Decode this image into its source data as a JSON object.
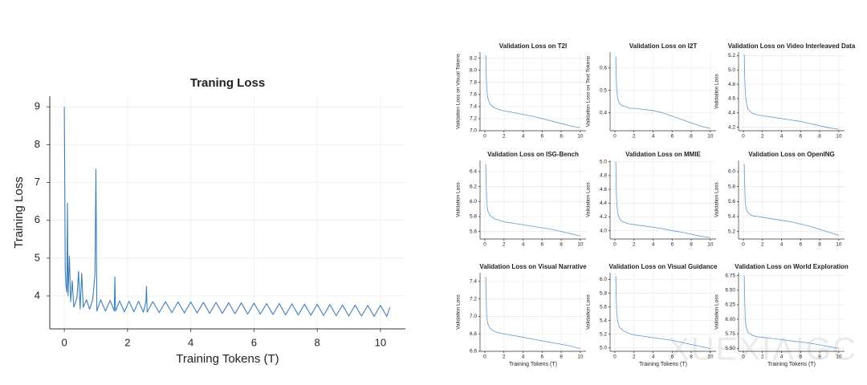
{
  "watermark": "XUEXIAIGC",
  "chart_data": [
    {
      "type": "line",
      "title": "Traning Loss",
      "x_label": "Training Tokens (T)",
      "y_label": "Training Loss",
      "color": "#3b7fc0",
      "grid": true,
      "xlim": [
        -0.46,
        10.79
      ],
      "ylim": [
        3.13,
        9.28
      ],
      "xticks": [
        0,
        2,
        4,
        6,
        8,
        10
      ],
      "yticks": [
        4,
        5,
        6,
        7,
        8,
        9
      ],
      "x": [
        0,
        0.03,
        0.05,
        0.08,
        0.1,
        0.12,
        0.16,
        0.2,
        0.25,
        0.3,
        0.4,
        0.45,
        0.5,
        0.55,
        0.6,
        0.7,
        0.8,
        0.9,
        0.97,
        1.0,
        1.03,
        1.15,
        1.3,
        1.45,
        1.58,
        1.6,
        1.62,
        1.75,
        1.9,
        2.05,
        2.2,
        2.35,
        2.5,
        2.58,
        2.6,
        2.62,
        2.8,
        3.0,
        3.2,
        3.4,
        3.6,
        3.8,
        4.0,
        4.2,
        4.4,
        4.6,
        4.8,
        5.0,
        5.2,
        5.4,
        5.6,
        5.8,
        6.0,
        6.2,
        6.4,
        6.6,
        6.8,
        7.0,
        7.2,
        7.4,
        7.6,
        7.8,
        8.0,
        8.2,
        8.4,
        8.6,
        8.8,
        9.0,
        9.2,
        9.4,
        9.6,
        9.8,
        10.0,
        10.2,
        10.3
      ],
      "values": [
        9.0,
        4.7,
        4.3,
        4.1,
        6.45,
        4.0,
        5.05,
        3.85,
        4.4,
        3.7,
        3.95,
        4.65,
        3.65,
        4.6,
        3.7,
        3.9,
        3.65,
        3.9,
        4.6,
        7.35,
        3.6,
        3.9,
        3.6,
        3.88,
        3.6,
        4.5,
        3.6,
        3.87,
        3.58,
        3.86,
        3.58,
        3.86,
        3.57,
        3.85,
        4.25,
        3.57,
        3.85,
        3.56,
        3.85,
        3.56,
        3.84,
        3.55,
        3.84,
        3.55,
        3.83,
        3.54,
        3.83,
        3.54,
        3.82,
        3.53,
        3.82,
        3.52,
        3.81,
        3.52,
        3.8,
        3.51,
        3.8,
        3.5,
        3.79,
        3.5,
        3.78,
        3.49,
        3.78,
        3.48,
        3.77,
        3.48,
        3.76,
        3.47,
        3.76,
        3.47,
        3.75,
        3.46,
        3.75,
        3.46,
        3.7
      ]
    },
    {
      "type": "line",
      "title": "Validation Loss on T2I",
      "y_label": "Validation Loss on Visual Tokens",
      "color": "#5b9bd5",
      "grid": true,
      "xlim": [
        -0.5,
        10.6
      ],
      "ylim": [
        7.0,
        8.3
      ],
      "xticks": [
        0,
        2,
        4,
        6,
        8,
        10
      ],
      "yticks": [
        {
          "value": 7,
          "label": "7.0"
        },
        7.2,
        7.4,
        7.6,
        7.8,
        {
          "value": 8,
          "label": "8.0"
        },
        8.2
      ],
      "x": [
        0.1,
        0.15,
        0.2,
        0.3,
        0.5,
        0.8,
        1,
        1.5,
        2,
        3,
        4,
        5,
        6,
        7,
        8,
        9,
        10
      ],
      "values": [
        8.25,
        7.9,
        7.7,
        7.55,
        7.45,
        7.4,
        7.38,
        7.35,
        7.33,
        7.3,
        7.27,
        7.24,
        7.2,
        7.16,
        7.12,
        7.08,
        7.05
      ]
    },
    {
      "type": "line",
      "title": "Validation Loss on I2T",
      "y_label": "Validation Loss on Text Tokens",
      "color": "#5b9bd5",
      "grid": true,
      "xlim": [
        -0.5,
        10.6
      ],
      "ylim": [
        0.32,
        0.67
      ],
      "xticks": [
        0,
        2,
        4,
        6,
        8,
        10
      ],
      "yticks": [
        0.4,
        0.5,
        0.6
      ],
      "x": [
        0.1,
        0.15,
        0.2,
        0.3,
        0.5,
        0.8,
        1,
        1.5,
        2,
        3,
        4,
        5,
        6,
        7,
        8,
        9,
        10
      ],
      "values": [
        0.65,
        0.55,
        0.5,
        0.46,
        0.44,
        0.43,
        0.43,
        0.42,
        0.42,
        0.415,
        0.41,
        0.4,
        0.385,
        0.37,
        0.355,
        0.34,
        0.33
      ]
    },
    {
      "type": "line",
      "title": "Validation Loss on Video Interleaved Data",
      "y_label": "Validation Loss",
      "color": "#5b9bd5",
      "grid": true,
      "xlim": [
        -0.5,
        10.6
      ],
      "ylim": [
        4.15,
        5.25
      ],
      "xticks": [
        0,
        2,
        4,
        6,
        8,
        10
      ],
      "yticks": [
        4.2,
        4.4,
        4.6,
        4.8,
        {
          "value": 5,
          "label": "5.0"
        },
        5.2
      ],
      "x": [
        0.1,
        0.15,
        0.2,
        0.3,
        0.5,
        0.8,
        1,
        1.5,
        2,
        3,
        4,
        5,
        6,
        7,
        8,
        9,
        10
      ],
      "values": [
        5.22,
        4.9,
        4.7,
        4.55,
        4.45,
        4.41,
        4.39,
        4.37,
        4.36,
        4.34,
        4.32,
        4.3,
        4.28,
        4.25,
        4.22,
        4.19,
        4.17
      ]
    },
    {
      "type": "line",
      "title": "Validation Loss on ISG-Bench",
      "y_label": "Validation Loss",
      "color": "#5b9bd5",
      "grid": true,
      "xlim": [
        -0.5,
        10.6
      ],
      "ylim": [
        5.5,
        6.55
      ],
      "xticks": [
        0,
        2,
        4,
        6,
        8,
        10
      ],
      "yticks": [
        5.6,
        5.8,
        {
          "value": 6,
          "label": "6.0"
        },
        6.2,
        6.4
      ],
      "x": [
        0.1,
        0.15,
        0.2,
        0.3,
        0.5,
        0.8,
        1,
        1.5,
        2,
        3,
        4,
        5,
        6,
        7,
        8,
        9,
        10
      ],
      "values": [
        6.5,
        6.2,
        6.0,
        5.88,
        5.82,
        5.79,
        5.77,
        5.75,
        5.73,
        5.71,
        5.69,
        5.67,
        5.65,
        5.63,
        5.6,
        5.57,
        5.54
      ]
    },
    {
      "type": "line",
      "title": "Validation Loss on MMIE",
      "y_label": "Validation Loss",
      "color": "#5b9bd5",
      "grid": true,
      "xlim": [
        -0.5,
        10.6
      ],
      "ylim": [
        3.88,
        5.02
      ],
      "xticks": [
        0,
        2,
        4,
        6,
        8,
        10
      ],
      "yticks": [
        {
          "value": 4,
          "label": "4.0"
        },
        4.2,
        4.4,
        4.6,
        4.8,
        {
          "value": 5,
          "label": "5.0"
        }
      ],
      "x": [
        0.1,
        0.15,
        0.2,
        0.3,
        0.5,
        0.8,
        1,
        1.5,
        2,
        3,
        4,
        5,
        6,
        7,
        8,
        9,
        10
      ],
      "values": [
        5.0,
        4.6,
        4.4,
        4.25,
        4.17,
        4.13,
        4.12,
        4.1,
        4.09,
        4.07,
        4.05,
        4.03,
        4.0,
        3.98,
        3.95,
        3.92,
        3.9
      ]
    },
    {
      "type": "line",
      "title": "Validation Loss on OpenING",
      "y_label": "Validation Loss",
      "color": "#5b9bd5",
      "grid": true,
      "xlim": [
        -0.5,
        10.6
      ],
      "ylim": [
        5.1,
        6.15
      ],
      "xticks": [
        0,
        2,
        4,
        6,
        8,
        10
      ],
      "yticks": [
        5.2,
        5.4,
        5.6,
        5.8,
        {
          "value": 6,
          "label": "6.0"
        }
      ],
      "x": [
        0.1,
        0.15,
        0.2,
        0.3,
        0.5,
        0.8,
        1,
        1.5,
        2,
        3,
        4,
        5,
        6,
        7,
        8,
        9,
        10
      ],
      "values": [
        6.1,
        5.8,
        5.6,
        5.5,
        5.45,
        5.42,
        5.41,
        5.4,
        5.39,
        5.37,
        5.35,
        5.33,
        5.3,
        5.27,
        5.23,
        5.19,
        5.15
      ]
    },
    {
      "type": "line",
      "title": "Validation Loss on Visual Narrative",
      "x_label": "Training Tokens (T)",
      "y_label": "Validation Loss",
      "color": "#5b9bd5",
      "grid": true,
      "xlim": [
        -0.5,
        10.6
      ],
      "ylim": [
        6.6,
        7.5
      ],
      "xticks": [
        0,
        2,
        4,
        6,
        8,
        10
      ],
      "yticks": [
        6.6,
        6.8,
        {
          "value": 7,
          "label": "7.0"
        },
        7.2,
        7.4
      ],
      "x": [
        0.1,
        0.15,
        0.2,
        0.3,
        0.5,
        0.8,
        1,
        1.5,
        2,
        3,
        4,
        5,
        6,
        7,
        8,
        9,
        10
      ],
      "values": [
        7.45,
        7.2,
        7.0,
        6.92,
        6.87,
        6.84,
        6.83,
        6.81,
        6.8,
        6.78,
        6.76,
        6.74,
        6.72,
        6.7,
        6.68,
        6.66,
        6.63
      ]
    },
    {
      "type": "line",
      "title": "Validation Loss on Visual Guidance",
      "x_label": "Training Tokens (T)",
      "y_label": "Validation Loss",
      "color": "#5b9bd5",
      "grid": true,
      "xlim": [
        -0.5,
        10.6
      ],
      "ylim": [
        4.95,
        6.1
      ],
      "xticks": [
        0,
        2,
        4,
        6,
        8,
        10
      ],
      "yticks": [
        {
          "value": 5,
          "label": "5.0"
        },
        5.2,
        5.4,
        5.6,
        5.8,
        {
          "value": 6,
          "label": "6.0"
        }
      ],
      "x": [
        0.1,
        0.15,
        0.2,
        0.3,
        0.5,
        0.8,
        1,
        1.5,
        2,
        3,
        4,
        5,
        6,
        7,
        8,
        9,
        10
      ],
      "values": [
        6.05,
        5.7,
        5.5,
        5.38,
        5.3,
        5.26,
        5.24,
        5.21,
        5.19,
        5.17,
        5.15,
        5.13,
        5.11,
        5.08,
        5.05,
        5.02,
        4.99
      ]
    },
    {
      "type": "line",
      "title": "Validation Loss on World Exploration",
      "x_label": "Training Tokens (T)",
      "y_label": "Validation Loss",
      "color": "#5b9bd5",
      "grid": true,
      "xlim": [
        -0.5,
        10.6
      ],
      "ylim": [
        5.45,
        6.8
      ],
      "xticks": [
        0,
        2,
        4,
        6,
        8,
        10
      ],
      "yticks": [
        {
          "value": 5.5,
          "label": "5.50"
        },
        5.75,
        {
          "value": 6,
          "label": "6.00"
        },
        6.25,
        {
          "value": 6.5,
          "label": "6.50"
        },
        6.75
      ],
      "x": [
        0.1,
        0.15,
        0.2,
        0.3,
        0.5,
        0.8,
        1,
        1.5,
        2,
        3,
        4,
        5,
        6,
        7,
        8,
        9,
        10
      ],
      "values": [
        6.75,
        6.3,
        6.0,
        5.85,
        5.77,
        5.74,
        5.72,
        5.7,
        5.69,
        5.67,
        5.65,
        5.63,
        5.61,
        5.59,
        5.56,
        5.53,
        5.5
      ]
    }
  ]
}
